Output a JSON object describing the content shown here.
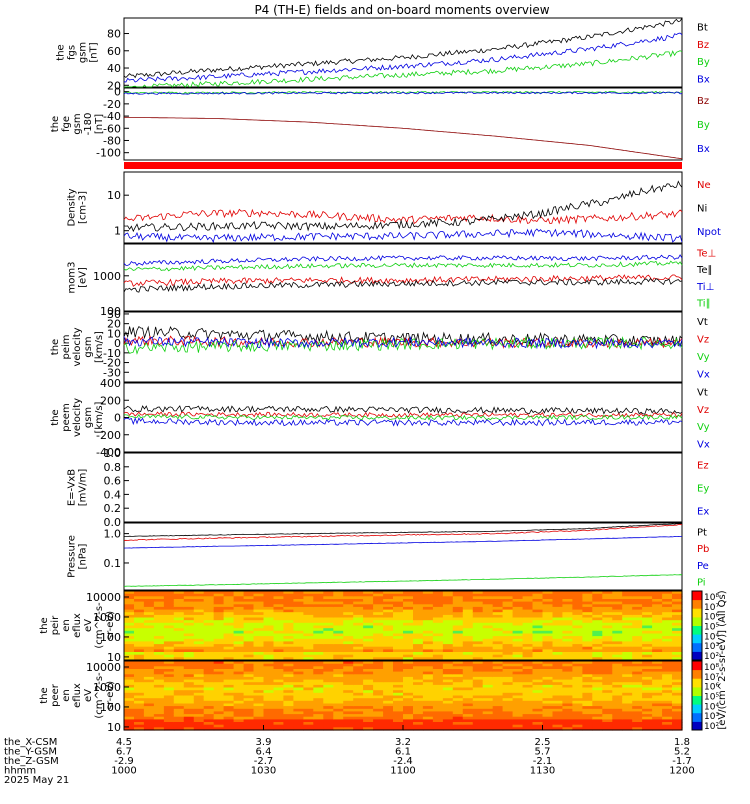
{
  "title": "P4 (TH-E) fields and on-board moments overview",
  "colors": {
    "black": "#000000",
    "red": "#e00000",
    "green": "#10d010",
    "blue": "#0000e0",
    "darkred": "#8b0000",
    "spec_bg": "#ff9a20"
  },
  "chart_data": [
    {
      "id": "fgs",
      "type": "line",
      "ylabel": [
        "the",
        "fgs",
        "gsm",
        "[nT]"
      ],
      "ylim": [
        18,
        98
      ],
      "yticks": [
        20,
        40,
        60,
        80
      ],
      "ylog": false,
      "series": [
        {
          "name": "Bt",
          "color": "#000000",
          "noise": 3,
          "x": [
            0,
            20,
            40,
            60,
            80,
            100,
            120
          ],
          "y": [
            30,
            38,
            45,
            52,
            62,
            76,
            95
          ]
        },
        {
          "name": "Bz",
          "color": "#e00000",
          "noise": 0,
          "x": [],
          "y": []
        },
        {
          "name": "By",
          "color": "#10d010",
          "noise": 3,
          "x": [
            0,
            20,
            40,
            60,
            80,
            100,
            120
          ],
          "y": [
            17,
            22,
            27,
            32,
            37,
            45,
            58
          ]
        },
        {
          "name": "Bx",
          "color": "#0000e0",
          "noise": 3,
          "x": [
            0,
            20,
            40,
            60,
            80,
            100,
            120
          ],
          "y": [
            25,
            30,
            36,
            42,
            50,
            62,
            78
          ]
        }
      ]
    },
    {
      "id": "fge",
      "type": "line",
      "ylabel": [
        "the",
        "fge",
        "gsm",
        "-180",
        "[nT]"
      ],
      "ylim": [
        -112,
        6
      ],
      "yticks": [
        0,
        -20,
        -40,
        -60,
        -80,
        -100
      ],
      "ylog": false,
      "series": [
        {
          "name": "Bz",
          "color": "#8b0000",
          "noise": 0,
          "x": [
            0,
            20,
            40,
            60,
            80,
            100,
            120
          ],
          "y": [
            -42,
            -44,
            -50,
            -60,
            -73,
            -88,
            -110
          ]
        },
        {
          "name": "By",
          "color": "#10d010",
          "noise": 1.5,
          "x": [
            0,
            60,
            120
          ],
          "y": [
            -2,
            -1,
            -1
          ]
        },
        {
          "name": "Bx",
          "color": "#0000e0",
          "noise": 1.5,
          "x": [
            0,
            60,
            120
          ],
          "y": [
            -3,
            -2,
            -2
          ]
        }
      ]
    },
    {
      "id": "density",
      "type": "line",
      "ylabel": [
        "Density",
        "[cm-3]"
      ],
      "ylim": [
        0.45,
        45
      ],
      "yticks": [
        1,
        10
      ],
      "ytick_labels": [
        "1",
        "10"
      ],
      "ylog": true,
      "series": [
        {
          "name": "Ne",
          "color": "#e00000",
          "noise": 0.25,
          "x": [
            0,
            15,
            30,
            45,
            60,
            75,
            90,
            105,
            120
          ],
          "y": [
            2.0,
            3.0,
            3.2,
            2.6,
            2.0,
            2.4,
            1.9,
            2.3,
            3.0
          ]
        },
        {
          "name": "Ni",
          "color": "#000000",
          "noise": 0.25,
          "x": [
            0,
            15,
            30,
            45,
            60,
            75,
            90,
            105,
            120
          ],
          "y": [
            1.2,
            1.3,
            1.4,
            1.3,
            1.5,
            1.8,
            3.0,
            7.0,
            20
          ]
        },
        {
          "name": "Npot",
          "color": "#0000e0",
          "noise": 0.25,
          "x": [
            0,
            15,
            30,
            45,
            60,
            75,
            90,
            105,
            120
          ],
          "y": [
            0.7,
            0.6,
            0.65,
            0.7,
            0.7,
            0.8,
            0.9,
            0.75,
            0.6
          ]
        }
      ]
    },
    {
      "id": "temp",
      "type": "line",
      "ylabel": [
        "mom3",
        "[eV]"
      ],
      "ylim": [
        100,
        8000
      ],
      "yticks": [
        100,
        1000
      ],
      "ytick_labels": [
        "100",
        "1000"
      ],
      "ylog": true,
      "series": [
        {
          "name": "Te⊥",
          "color": "#e00000",
          "noise": 0.2,
          "x": [
            0,
            20,
            40,
            60,
            80,
            100,
            120
          ],
          "y": [
            600,
            700,
            750,
            750,
            800,
            850,
            900
          ]
        },
        {
          "name": "Te∥",
          "color": "#000000",
          "noise": 0.2,
          "x": [
            0,
            20,
            40,
            60,
            80,
            100,
            120
          ],
          "y": [
            400,
            500,
            550,
            600,
            650,
            650,
            700
          ]
        },
        {
          "name": "Ti⊥",
          "color": "#0000e0",
          "noise": 0.15,
          "x": [
            0,
            20,
            40,
            60,
            80,
            100,
            120
          ],
          "y": [
            2200,
            2600,
            3000,
            3200,
            3200,
            3100,
            3400
          ]
        },
        {
          "name": "Ti∥",
          "color": "#10d010",
          "noise": 0.15,
          "x": [
            0,
            20,
            40,
            60,
            80,
            100,
            120
          ],
          "y": [
            1500,
            1700,
            1900,
            2000,
            2000,
            2000,
            2300
          ]
        }
      ]
    },
    {
      "id": "peim",
      "type": "line",
      "ylabel": [
        "the",
        "peim",
        "velocity",
        "gsm",
        "[km/s]"
      ],
      "ylim": [
        -40,
        32
      ],
      "yticks": [
        -30,
        -20,
        -10,
        0,
        10,
        20,
        30
      ],
      "ylog": false,
      "series": [
        {
          "name": "Vt",
          "color": "#000000",
          "noise": 6,
          "x": [
            0,
            30,
            60,
            90,
            120
          ],
          "y": [
            12,
            8,
            5,
            4,
            2
          ]
        },
        {
          "name": "Vz",
          "color": "#e00000",
          "noise": 5,
          "x": [
            0,
            30,
            60,
            90,
            120
          ],
          "y": [
            3,
            1,
            1,
            0,
            0
          ]
        },
        {
          "name": "Vy",
          "color": "#10d010",
          "noise": 6,
          "x": [
            0,
            30,
            60,
            90,
            120
          ],
          "y": [
            -5,
            -3,
            -1,
            0,
            0
          ]
        },
        {
          "name": "Vx",
          "color": "#0000e0",
          "noise": 5,
          "x": [
            0,
            30,
            60,
            90,
            120
          ],
          "y": [
            2,
            0,
            1,
            0,
            0
          ]
        }
      ]
    },
    {
      "id": "peem",
      "type": "line",
      "ylabel": [
        "the",
        "peem",
        "velocity",
        "gsm",
        "[km/s]"
      ],
      "ylim": [
        -400,
        400
      ],
      "yticks": [
        -400,
        -200,
        0,
        200,
        400
      ],
      "ylog": false,
      "series": [
        {
          "name": "Vt",
          "color": "#000000",
          "noise": 35,
          "x": [
            0,
            30,
            60,
            90,
            120
          ],
          "y": [
            100,
            100,
            90,
            80,
            70
          ]
        },
        {
          "name": "Vz",
          "color": "#e00000",
          "noise": 25,
          "x": [
            0,
            30,
            60,
            90,
            120
          ],
          "y": [
            40,
            35,
            30,
            30,
            30
          ]
        },
        {
          "name": "Vy",
          "color": "#10d010",
          "noise": 25,
          "x": [
            0,
            30,
            60,
            90,
            120
          ],
          "y": [
            10,
            0,
            -5,
            0,
            5
          ]
        },
        {
          "name": "Vx",
          "color": "#0000e0",
          "noise": 35,
          "x": [
            0,
            30,
            60,
            90,
            120
          ],
          "y": [
            -40,
            -60,
            -60,
            -60,
            -50
          ]
        }
      ]
    },
    {
      "id": "efield",
      "type": "line",
      "ylabel": [
        "E=-VxB",
        "[mV/m]"
      ],
      "ylim": [
        0,
        1
      ],
      "yticks": [
        0,
        0.2,
        0.4,
        0.6,
        0.8,
        1.0
      ],
      "ytick_labels": [
        "0.0",
        "0.2",
        "0.4",
        "0.6",
        "0.8",
        "1.0"
      ],
      "ylog": false,
      "series": [
        {
          "name": "Ez",
          "color": "#e00000",
          "noise": 0,
          "x": [],
          "y": []
        },
        {
          "name": "Ey",
          "color": "#10d010",
          "noise": 0,
          "x": [],
          "y": []
        },
        {
          "name": "Ex",
          "color": "#0000e0",
          "noise": 0,
          "x": [],
          "y": []
        }
      ]
    },
    {
      "id": "pressure",
      "type": "line",
      "ylabel": [
        "Pressure",
        "[nPa]"
      ],
      "ylim": [
        0.012,
        2.3
      ],
      "yticks": [
        0.1,
        1.0
      ],
      "ytick_labels": [
        "0.1",
        "1.0"
      ],
      "ylog": true,
      "series": [
        {
          "name": "Pt",
          "color": "#000000",
          "noise": 0.02,
          "x": [
            0,
            20,
            40,
            60,
            80,
            100,
            120
          ],
          "y": [
            0.8,
            0.9,
            1.0,
            1.1,
            1.2,
            1.5,
            2.2
          ]
        },
        {
          "name": "Pb",
          "color": "#e00000",
          "noise": 0.04,
          "x": [
            0,
            20,
            40,
            60,
            80,
            100,
            120
          ],
          "y": [
            0.6,
            0.7,
            0.8,
            0.9,
            1.0,
            1.3,
            2.0
          ]
        },
        {
          "name": "Pe",
          "color": "#0000e0",
          "noise": 0.015,
          "x": [
            0,
            20,
            40,
            60,
            80,
            100,
            120
          ],
          "y": [
            0.32,
            0.37,
            0.42,
            0.48,
            0.55,
            0.66,
            0.8
          ]
        },
        {
          "name": "Pi",
          "color": "#10d010",
          "noise": 0.02,
          "x": [
            0,
            20,
            40,
            60,
            80,
            100,
            120
          ],
          "y": [
            0.016,
            0.018,
            0.021,
            0.024,
            0.028,
            0.033,
            0.04
          ]
        }
      ]
    },
    {
      "id": "peir",
      "type": "heatmap",
      "ylabel": [
        "the",
        "peir",
        "en",
        "eflux",
        "eV",
        "(cm^2-s-",
        "sr-eV)"
      ],
      "ylim": [
        7,
        20000
      ],
      "yticks": [
        10,
        100,
        1000,
        10000
      ],
      "ytick_labels": [
        "10",
        "100",
        "1000",
        "10000"
      ],
      "ylog": true
    },
    {
      "id": "peer",
      "type": "heatmap",
      "ylabel": [
        "the",
        "peer",
        "en",
        "eflux",
        "eV",
        "(cm^2-s-",
        "sr-eV)"
      ],
      "ylim": [
        7,
        20000
      ],
      "yticks": [
        10,
        100,
        1000,
        10000
      ],
      "ytick_labels": [
        "10",
        "100",
        "1000",
        "10000"
      ],
      "ylog": true
    }
  ],
  "colorbar": {
    "labels": [
      "10⁸",
      "10⁷",
      "10⁶",
      "10⁵",
      "10⁴",
      "10³",
      "10²"
    ],
    "unit": "[eV/(cm^2-s-sr-eV)] (All Qs)"
  },
  "time_axis": {
    "xlim": [
      0,
      120
    ],
    "ticks": [
      0,
      30,
      60,
      90,
      120
    ],
    "rows": [
      {
        "label": "the_X-CSM",
        "values": [
          "4.5",
          "3.9",
          "3.2",
          "2.5",
          "1.8"
        ]
      },
      {
        "label": "the_Y-GSM",
        "values": [
          "6.7",
          "6.4",
          "6.1",
          "5.7",
          "5.2"
        ]
      },
      {
        "label": "the_Z-GSM",
        "values": [
          "-2.9",
          "-2.7",
          "-2.4",
          "-2.1",
          "-1.7"
        ]
      },
      {
        "label": "hhmm",
        "values": [
          "1000",
          "1030",
          "1100",
          "1130",
          "1200"
        ]
      }
    ],
    "date": "2025 May 21"
  }
}
